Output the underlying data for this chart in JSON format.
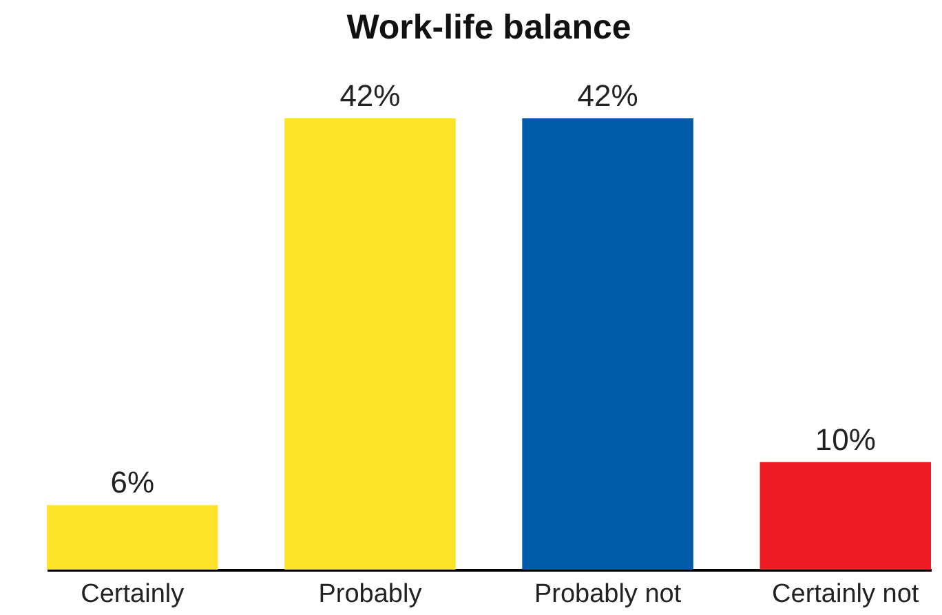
{
  "chart_data": {
    "type": "bar",
    "title": "Work-life balance",
    "categories": [
      "Certainly",
      "Probably",
      "Probably not",
      "Certainly not"
    ],
    "values": [
      6,
      42,
      42,
      10
    ],
    "colors": [
      "#fde42a",
      "#fde42a",
      "#005bab",
      "#ed1c24"
    ],
    "value_labels": [
      "6%",
      "42%",
      "42%",
      "10%"
    ],
    "grid": false,
    "legend": false
  }
}
